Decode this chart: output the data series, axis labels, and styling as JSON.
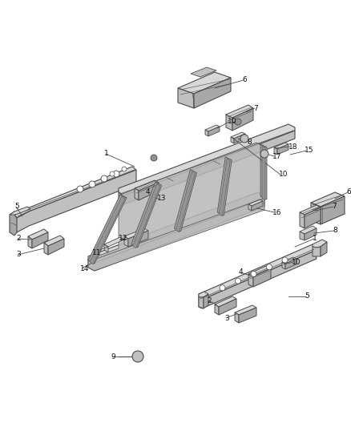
{
  "bg_color": "#ffffff",
  "lc": "#4a4a4a",
  "fc_light": "#d8d8d8",
  "fc_mid": "#c0c0c0",
  "fc_dark": "#a8a8a8",
  "fc_darker": "#909090",
  "figsize": [
    4.38,
    5.33
  ],
  "dpi": 100
}
